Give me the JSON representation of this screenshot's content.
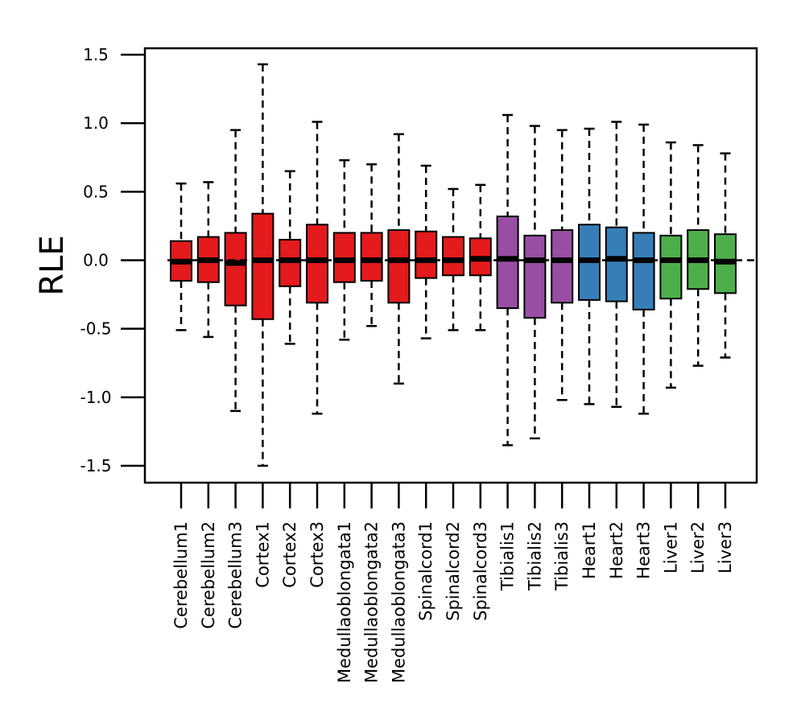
{
  "chart_data": {
    "type": "boxplot",
    "title": "",
    "xlabel": "",
    "ylabel": "RLE",
    "ylim": [
      -1.5,
      1.5
    ],
    "yticks": [
      "1.5",
      "1.0",
      "0.5",
      "0.0",
      "-0.5",
      "-1.0",
      "-1.5"
    ],
    "ytick_values": [
      1.5,
      1.0,
      0.5,
      0.0,
      -0.5,
      -1.0,
      -1.5
    ],
    "reference_line": 0.0,
    "grid": false,
    "legend": "none",
    "colors": {
      "Cerebellum": "#e41a1c",
      "Cortex": "#e41a1c",
      "Medullaoblongata": "#e41a1c",
      "Spinalcord": "#e41a1c",
      "Tibialis": "#984ea3",
      "Heart": "#377eb8",
      "Liver": "#4daf4a"
    },
    "samples": [
      {
        "name": "Cerebellum1",
        "group": "Cerebellum",
        "min": -0.51,
        "q1": -0.15,
        "median": -0.01,
        "q3": 0.14,
        "max": 0.56
      },
      {
        "name": "Cerebellum2",
        "group": "Cerebellum",
        "min": -0.56,
        "q1": -0.16,
        "median": 0.0,
        "q3": 0.17,
        "max": 0.57
      },
      {
        "name": "Cerebellum3",
        "group": "Cerebellum",
        "min": -1.1,
        "q1": -0.33,
        "median": -0.02,
        "q3": 0.2,
        "max": 0.95
      },
      {
        "name": "Cortex1",
        "group": "Cortex",
        "min": -1.5,
        "q1": -0.43,
        "median": 0.0,
        "q3": 0.34,
        "max": 1.43
      },
      {
        "name": "Cortex2",
        "group": "Cortex",
        "min": -0.61,
        "q1": -0.19,
        "median": 0.0,
        "q3": 0.15,
        "max": 0.65
      },
      {
        "name": "Cortex3",
        "group": "Cortex",
        "min": -1.12,
        "q1": -0.31,
        "median": 0.0,
        "q3": 0.26,
        "max": 1.01
      },
      {
        "name": "Medullaoblongata1",
        "group": "Medullaoblongata",
        "min": -0.58,
        "q1": -0.16,
        "median": 0.0,
        "q3": 0.2,
        "max": 0.73
      },
      {
        "name": "Medullaoblongata2",
        "group": "Medullaoblongata",
        "min": -0.48,
        "q1": -0.15,
        "median": 0.0,
        "q3": 0.2,
        "max": 0.7
      },
      {
        "name": "Medullaoblongata3",
        "group": "Medullaoblongata",
        "min": -0.9,
        "q1": -0.31,
        "median": 0.0,
        "q3": 0.22,
        "max": 0.92
      },
      {
        "name": "Spinalcord1",
        "group": "Spinalcord",
        "min": -0.57,
        "q1": -0.13,
        "median": 0.0,
        "q3": 0.21,
        "max": 0.69
      },
      {
        "name": "Spinalcord2",
        "group": "Spinalcord",
        "min": -0.51,
        "q1": -0.11,
        "median": 0.0,
        "q3": 0.17,
        "max": 0.52
      },
      {
        "name": "Spinalcord3",
        "group": "Spinalcord",
        "min": -0.51,
        "q1": -0.11,
        "median": 0.01,
        "q3": 0.16,
        "max": 0.55
      },
      {
        "name": "Tibialis1",
        "group": "Tibialis",
        "min": -1.35,
        "q1": -0.35,
        "median": 0.01,
        "q3": 0.32,
        "max": 1.06
      },
      {
        "name": "Tibialis2",
        "group": "Tibialis",
        "min": -1.3,
        "q1": -0.42,
        "median": 0.0,
        "q3": 0.18,
        "max": 0.98
      },
      {
        "name": "Tibialis3",
        "group": "Tibialis",
        "min": -1.02,
        "q1": -0.31,
        "median": 0.0,
        "q3": 0.22,
        "max": 0.95
      },
      {
        "name": "Heart1",
        "group": "Heart",
        "min": -1.05,
        "q1": -0.29,
        "median": 0.0,
        "q3": 0.26,
        "max": 0.96
      },
      {
        "name": "Heart2",
        "group": "Heart",
        "min": -1.07,
        "q1": -0.3,
        "median": 0.01,
        "q3": 0.24,
        "max": 1.01
      },
      {
        "name": "Heart3",
        "group": "Heart",
        "min": -1.12,
        "q1": -0.36,
        "median": 0.0,
        "q3": 0.2,
        "max": 0.99
      },
      {
        "name": "Liver1",
        "group": "Liver",
        "min": -0.93,
        "q1": -0.28,
        "median": 0.0,
        "q3": 0.18,
        "max": 0.86
      },
      {
        "name": "Liver2",
        "group": "Liver",
        "min": -0.77,
        "q1": -0.21,
        "median": 0.0,
        "q3": 0.22,
        "max": 0.84
      },
      {
        "name": "Liver3",
        "group": "Liver",
        "min": -0.71,
        "q1": -0.24,
        "median": -0.01,
        "q3": 0.19,
        "max": 0.78
      }
    ]
  }
}
